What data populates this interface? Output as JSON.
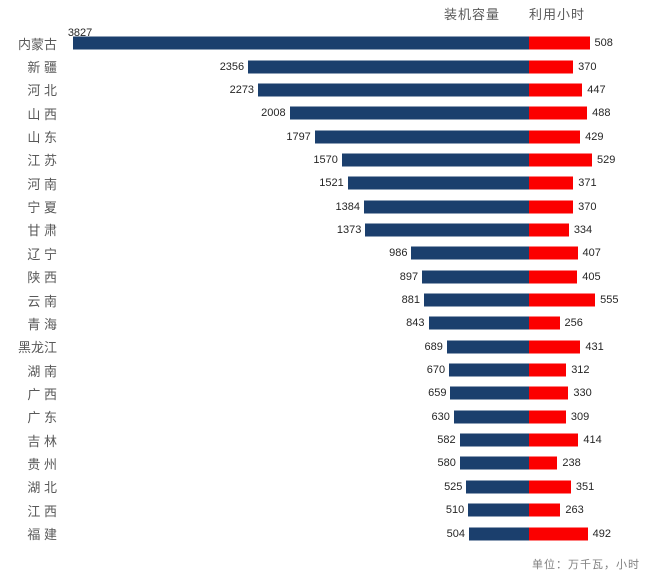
{
  "chart_data": {
    "type": "bar",
    "variant": "back-to-back-horizontal",
    "title": "",
    "legend_position": "top-right",
    "grid": false,
    "categories": [
      "内蒙古",
      "新疆",
      "河北",
      "山西",
      "山东",
      "江苏",
      "河南",
      "宁夏",
      "甘肃",
      "辽宁",
      "陕西",
      "云南",
      "青海",
      "黑龙江",
      "湖南",
      "广西",
      "广东",
      "吉林",
      "贵州",
      "湖北",
      "江西",
      "福建"
    ],
    "series": [
      {
        "name": "装机容量",
        "color": "#1B3F6D",
        "direction": "left",
        "values": [
          3827,
          2356,
          2273,
          2008,
          1797,
          1570,
          1521,
          1384,
          1373,
          986,
          897,
          881,
          843,
          689,
          670,
          659,
          630,
          582,
          580,
          525,
          510,
          504
        ]
      },
      {
        "name": "利用小时",
        "color": "#FB0000",
        "direction": "right",
        "values": [
          508,
          370,
          447,
          488,
          429,
          529,
          371,
          370,
          334,
          407,
          405,
          555,
          256,
          431,
          312,
          330,
          309,
          414,
          238,
          351,
          263,
          492
        ]
      }
    ],
    "footnote": "单位：万千瓦，小时",
    "text_colors": {
      "category": "#595959",
      "value": "#262626",
      "legend": "#595959",
      "footnote": "#808080"
    }
  }
}
